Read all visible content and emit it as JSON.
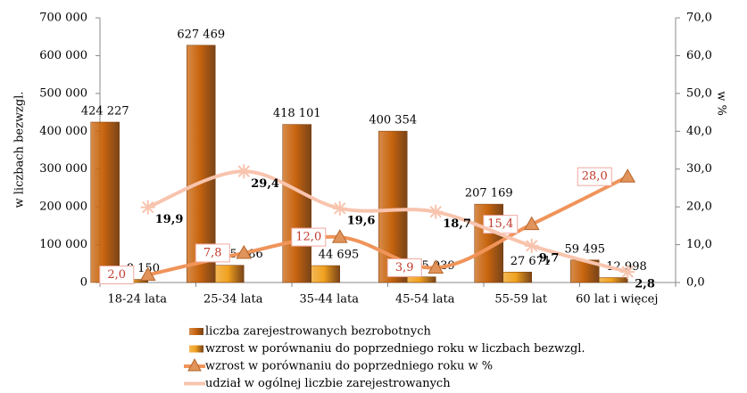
{
  "chart_data": {
    "type": "bar",
    "y_axis_label": "w liczbach bezwzgl.",
    "y2_axis_label": "w %",
    "categories": [
      "18-24 lata",
      "25-34 lata",
      "35-44 lata",
      "45-54 lata",
      "55-59 lat",
      "60 lat i więcej"
    ],
    "ylim": [
      0,
      700000
    ],
    "yticks": [
      0,
      {
        "value": 100000,
        "label": "100 000"
      },
      {
        "value": 200000,
        "label": "200 000"
      },
      {
        "value": 300000,
        "label": "300 000"
      },
      {
        "value": 400000,
        "label": "400 000"
      },
      {
        "value": 500000,
        "label": "500 000"
      },
      {
        "value": 600000,
        "label": "600 000"
      },
      {
        "value": 700000,
        "label": "700 000"
      }
    ],
    "y2lim": [
      0,
      70
    ],
    "y2ticks": [
      {
        "value": 0,
        "label": "0,0"
      },
      {
        "value": 10,
        "label": "10,0"
      },
      {
        "value": 20,
        "label": "20,0"
      },
      {
        "value": 30,
        "label": "30,0"
      },
      {
        "value": 40,
        "label": "40,0"
      },
      {
        "value": 50,
        "label": "50,0"
      },
      {
        "value": 60,
        "label": "60,0"
      },
      {
        "value": 70,
        "label": "70,0"
      }
    ],
    "series": [
      {
        "name": "liczba zarejestrowanych bezrobotnych",
        "type": "bar",
        "color": "#c8650f",
        "values": [
          424227,
          627469,
          418101,
          400354,
          207169,
          59495
        ],
        "value_labels": [
          "424 227",
          "627 469",
          "418 101",
          "400 354",
          "207 169",
          "59 495"
        ]
      },
      {
        "name": "wzrost w porównaniu do poprzedniego roku w liczbach bezwzgl.",
        "type": "bar",
        "color": "#f0a11e",
        "values": [
          8150,
          45586,
          44695,
          15039,
          27671,
          12998
        ],
        "value_labels": [
          "8 150",
          "45 586",
          "44 695",
          "15 039",
          "27 671",
          "12 998"
        ]
      },
      {
        "name": "wzrost w porównaniu do poprzedniego roku w %",
        "type": "line",
        "axis": "y2",
        "color": "#f0945a",
        "values": [
          2.0,
          7.8,
          12.0,
          3.9,
          15.4,
          28.0
        ],
        "value_labels": [
          "2,0",
          "7,8",
          "12,0",
          "3,9",
          "15,4",
          "28,0"
        ]
      },
      {
        "name": "udział w ogólnej liczbie zarejestrowanych",
        "type": "line",
        "axis": "y2",
        "color": "#f8c4ae",
        "values": [
          19.9,
          29.4,
          19.6,
          18.7,
          9.7,
          2.8
        ],
        "value_labels": [
          "19,9",
          "29,4",
          "19,6",
          "18,7",
          "9,7",
          "2,8"
        ]
      }
    ]
  }
}
